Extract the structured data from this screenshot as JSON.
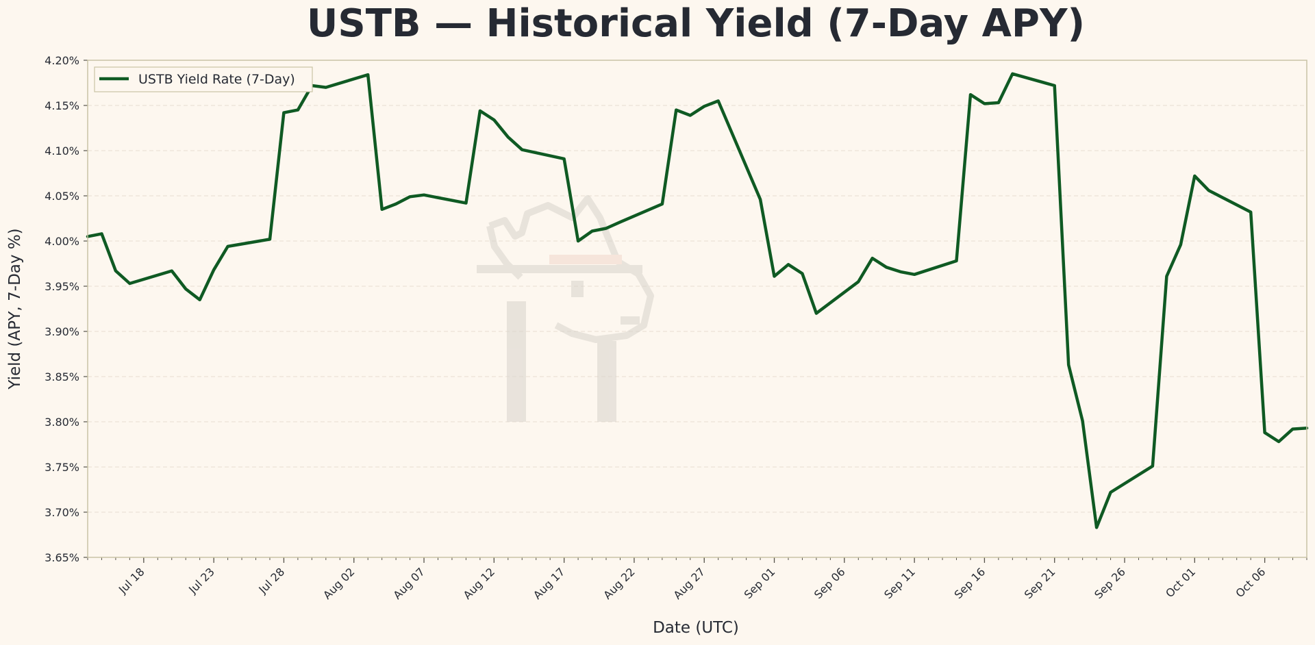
{
  "chart_data": {
    "type": "line",
    "title": "USTB — Historical Yield (7-Day APY)",
    "xlabel": "Date (UTC)",
    "ylabel": "Yield (APY, 7-Day %)",
    "ylim": [
      3.65,
      4.2
    ],
    "xlim": [
      "2025-07-14",
      "2025-10-09"
    ],
    "y_ticks": [
      "3.65%",
      "3.70%",
      "3.75%",
      "3.80%",
      "3.85%",
      "3.90%",
      "3.95%",
      "4.00%",
      "4.05%",
      "4.10%",
      "4.15%",
      "4.20%"
    ],
    "x_ticks": [
      {
        "date": "2025-07-18",
        "label": "Jul 18"
      },
      {
        "date": "2025-07-23",
        "label": "Jul 23"
      },
      {
        "date": "2025-07-28",
        "label": "Jul 28"
      },
      {
        "date": "2025-08-02",
        "label": "Aug 02"
      },
      {
        "date": "2025-08-07",
        "label": "Aug 07"
      },
      {
        "date": "2025-08-12",
        "label": "Aug 12"
      },
      {
        "date": "2025-08-17",
        "label": "Aug 17"
      },
      {
        "date": "2025-08-22",
        "label": "Aug 22"
      },
      {
        "date": "2025-08-27",
        "label": "Aug 27"
      },
      {
        "date": "2025-09-01",
        "label": "Sep 01"
      },
      {
        "date": "2025-09-06",
        "label": "Sep 06"
      },
      {
        "date": "2025-09-11",
        "label": "Sep 11"
      },
      {
        "date": "2025-09-16",
        "label": "Sep 16"
      },
      {
        "date": "2025-09-21",
        "label": "Sep 21"
      },
      {
        "date": "2025-09-26",
        "label": "Sep 26"
      },
      {
        "date": "2025-10-01",
        "label": "Oct 01"
      },
      {
        "date": "2025-10-06",
        "label": "Oct 06"
      }
    ],
    "grid": true,
    "legend_position": "top-left",
    "colors": {
      "line": "#0f5a23",
      "background": "#fdf7ef",
      "grid": "#e6ded2",
      "frame": "#c9c3a5"
    },
    "series": [
      {
        "name": "USTB Yield Rate (7-Day)",
        "points": [
          [
            "2025-07-14",
            4.005
          ],
          [
            "2025-07-15",
            4.008
          ],
          [
            "2025-07-16",
            3.967
          ],
          [
            "2025-07-17",
            3.953
          ],
          [
            "2025-07-20",
            3.967
          ],
          [
            "2025-07-21",
            3.947
          ],
          [
            "2025-07-22",
            3.935
          ],
          [
            "2025-07-23",
            3.968
          ],
          [
            "2025-07-24",
            3.994
          ],
          [
            "2025-07-27",
            4.002
          ],
          [
            "2025-07-28",
            4.142
          ],
          [
            "2025-07-29",
            4.145
          ],
          [
            "2025-07-30",
            4.172
          ],
          [
            "2025-07-31",
            4.17
          ],
          [
            "2025-08-03",
            4.184
          ],
          [
            "2025-08-04",
            4.035
          ],
          [
            "2025-08-05",
            4.041
          ],
          [
            "2025-08-06",
            4.049
          ],
          [
            "2025-08-07",
            4.051
          ],
          [
            "2025-08-10",
            4.042
          ],
          [
            "2025-08-11",
            4.144
          ],
          [
            "2025-08-12",
            4.134
          ],
          [
            "2025-08-13",
            4.115
          ],
          [
            "2025-08-14",
            4.101
          ],
          [
            "2025-08-17",
            4.091
          ],
          [
            "2025-08-18",
            4.0
          ],
          [
            "2025-08-19",
            4.011
          ],
          [
            "2025-08-20",
            4.014
          ],
          [
            "2025-08-21",
            4.021
          ],
          [
            "2025-08-24",
            4.041
          ],
          [
            "2025-08-25",
            4.145
          ],
          [
            "2025-08-26",
            4.139
          ],
          [
            "2025-08-27",
            4.149
          ],
          [
            "2025-08-28",
            4.155
          ],
          [
            "2025-08-31",
            4.046
          ],
          [
            "2025-09-01",
            3.961
          ],
          [
            "2025-09-02",
            3.974
          ],
          [
            "2025-09-03",
            3.964
          ],
          [
            "2025-09-04",
            3.92
          ],
          [
            "2025-09-07",
            3.955
          ],
          [
            "2025-09-08",
            3.981
          ],
          [
            "2025-09-09",
            3.971
          ],
          [
            "2025-09-10",
            3.966
          ],
          [
            "2025-09-11",
            3.963
          ],
          [
            "2025-09-14",
            3.978
          ],
          [
            "2025-09-15",
            4.162
          ],
          [
            "2025-09-16",
            4.152
          ],
          [
            "2025-09-17",
            4.153
          ],
          [
            "2025-09-18",
            4.185
          ],
          [
            "2025-09-21",
            4.172
          ],
          [
            "2025-09-22",
            3.863
          ],
          [
            "2025-09-23",
            3.801
          ],
          [
            "2025-09-24",
            3.683
          ],
          [
            "2025-09-25",
            3.722
          ],
          [
            "2025-09-28",
            3.751
          ],
          [
            "2025-09-29",
            3.961
          ],
          [
            "2025-09-30",
            3.996
          ],
          [
            "2025-10-01",
            4.072
          ],
          [
            "2025-10-02",
            4.056
          ],
          [
            "2025-10-05",
            4.032
          ],
          [
            "2025-10-06",
            3.788
          ],
          [
            "2025-10-07",
            3.778
          ],
          [
            "2025-10-08",
            3.792
          ],
          [
            "2025-10-09",
            3.793
          ]
        ]
      }
    ]
  }
}
